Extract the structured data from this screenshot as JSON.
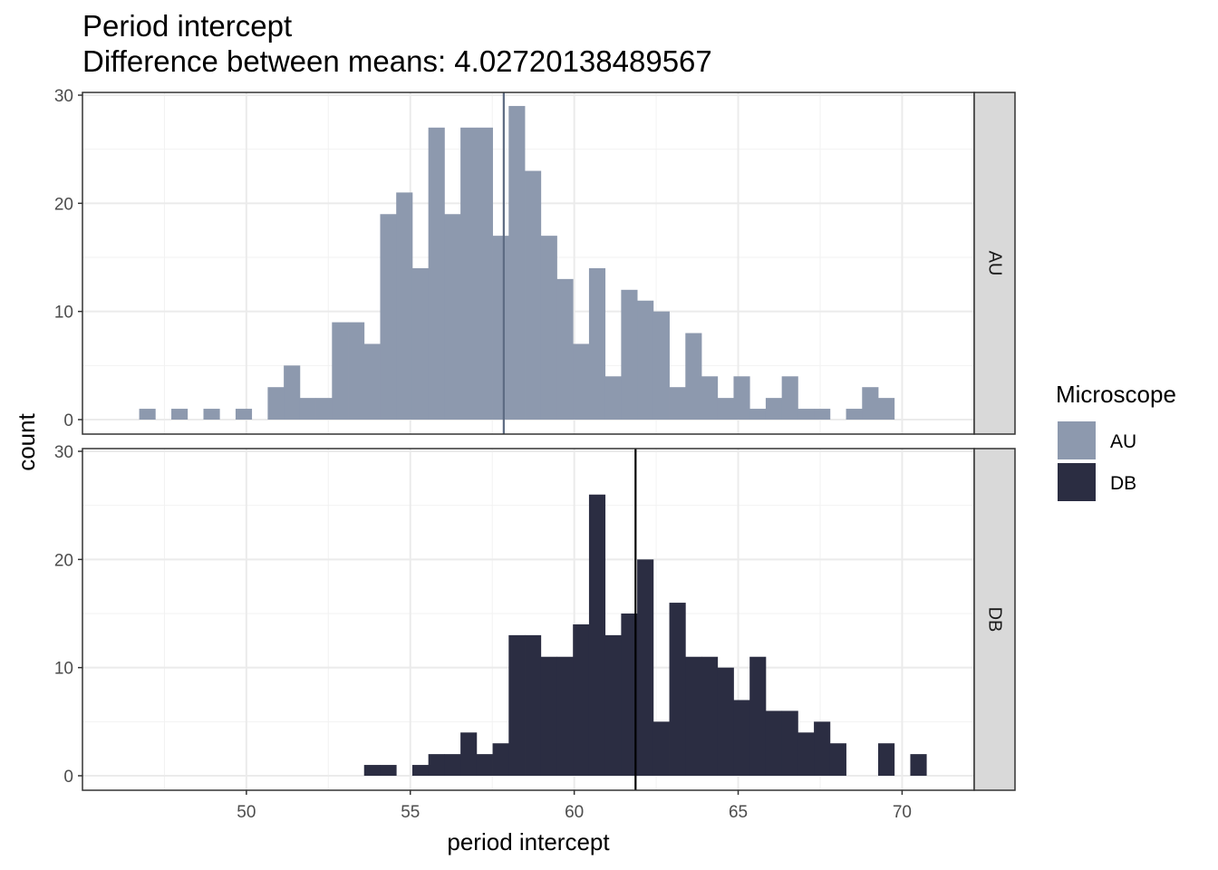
{
  "chart_data": {
    "type": "bar",
    "title": "Period intercept",
    "subtitle": "Difference between means: 4.02720138489567",
    "xlabel": "period intercept",
    "ylabel": "count",
    "xlim": [
      45.0,
      72.2
    ],
    "ylim": [
      0,
      30
    ],
    "x_ticks": [
      "50",
      "55",
      "60",
      "65",
      "70"
    ],
    "y_ticks": [
      "0",
      "10",
      "20",
      "30"
    ],
    "bin_width": 0.49,
    "grid": true,
    "legend": {
      "title": "Microscope",
      "position": "right",
      "entries": [
        {
          "label": "AU",
          "color": "#8d99ae"
        },
        {
          "label": "DB",
          "color": "#2b2d42"
        }
      ]
    },
    "panels": [
      {
        "strip": "AU",
        "color": "#8d99ae",
        "mean_line": 57.85,
        "mean_line_color": "#5d6b82",
        "bins_start": 46.73,
        "counts": [
          1,
          0,
          1,
          0,
          1,
          0,
          1,
          0,
          3,
          5,
          2,
          2,
          9,
          9,
          7,
          19,
          21,
          14,
          27,
          19,
          27,
          27,
          17,
          29,
          23,
          17,
          13,
          7,
          14,
          4,
          12,
          11,
          10,
          3,
          8,
          4,
          2,
          4,
          1,
          2,
          4,
          1,
          1,
          0,
          1,
          3,
          2
        ]
      },
      {
        "strip": "DB",
        "color": "#2b2d42",
        "mean_line": 61.87,
        "mean_line_color": "#000000",
        "bins_start": 53.59,
        "counts": [
          1,
          1,
          0,
          1,
          2,
          2,
          4,
          2,
          3,
          13,
          13,
          11,
          11,
          14,
          26,
          13,
          15,
          20,
          5,
          16,
          11,
          11,
          10,
          7,
          11,
          6,
          6,
          4,
          5,
          3,
          0,
          0,
          3,
          0,
          2
        ]
      }
    ]
  }
}
